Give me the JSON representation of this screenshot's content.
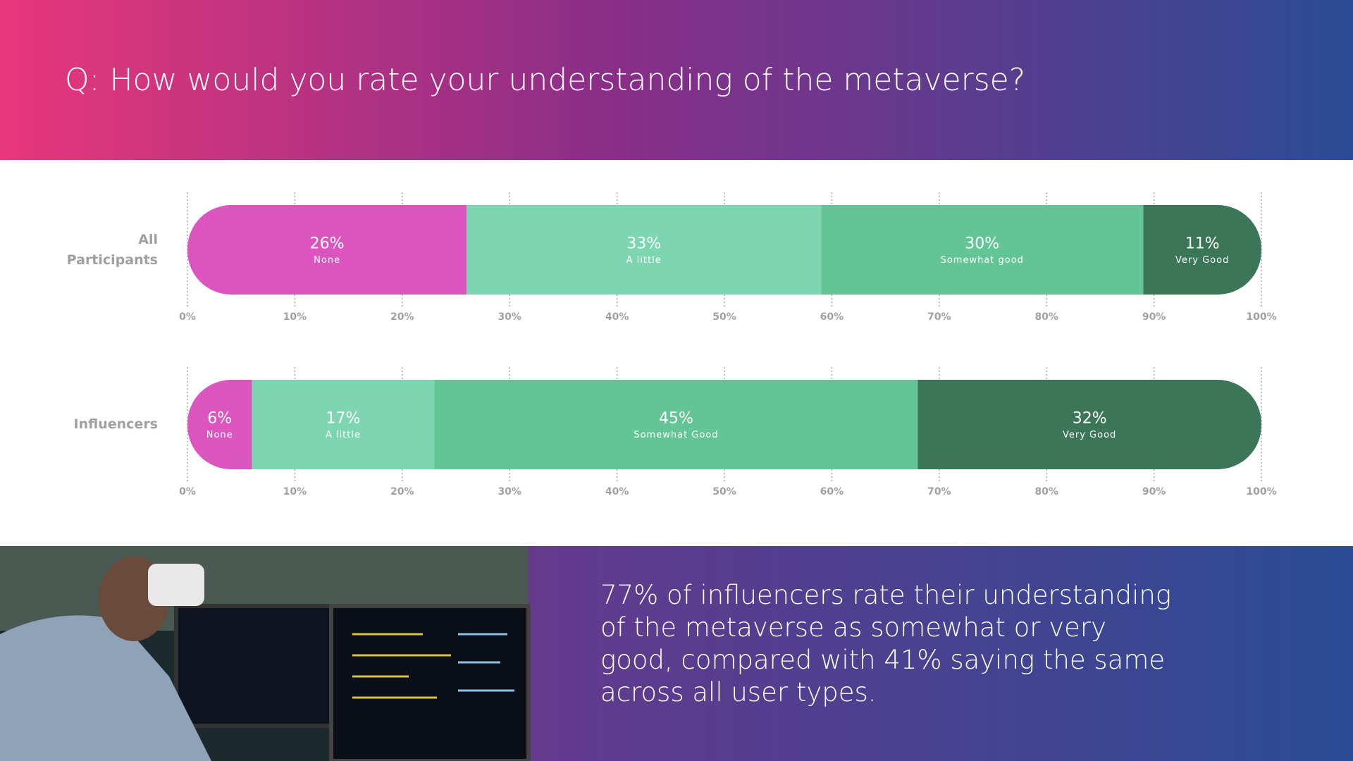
{
  "title": "Q: How would you rate your understanding of the metaverse?",
  "callout": "77% of influencers rate their understanding of the metaverse as somewhat or very good, compared with 41% saying the same across all user types.",
  "chart_data": [
    {
      "type": "stacked_bar",
      "label": "All Participants",
      "categories": [
        "None",
        "A little",
        "Somewhat good",
        "Very Good"
      ],
      "values": [
        26,
        33,
        30,
        11
      ],
      "value_labels": [
        "26%",
        "33%",
        "30%",
        "11%"
      ],
      "colors": [
        "#dc55be",
        "#7dd6b1",
        "#63c496",
        "#3c7658"
      ],
      "xlim": [
        0,
        100
      ],
      "xticks": [
        {
          "value": 0,
          "label": "0%"
        },
        {
          "value": 10,
          "label": "10%"
        },
        {
          "value": 20,
          "label": "20%"
        },
        {
          "value": 30,
          "label": "30%"
        },
        {
          "value": 40,
          "label": "40%"
        },
        {
          "value": 50,
          "label": "50%"
        },
        {
          "value": 60,
          "label": "60%"
        },
        {
          "value": 70,
          "label": "70%"
        },
        {
          "value": 80,
          "label": "80%"
        },
        {
          "value": 90,
          "label": "90%"
        },
        {
          "value": 100,
          "label": "100%"
        }
      ]
    },
    {
      "type": "stacked_bar",
      "label": "Influencers",
      "categories": [
        "None",
        "A little",
        "Somewhat Good",
        "Very Good"
      ],
      "values": [
        6,
        17,
        45,
        32
      ],
      "value_labels": [
        "6%",
        "17%",
        "45%",
        "32%"
      ],
      "colors": [
        "#dc55be",
        "#7dd6b1",
        "#63c496",
        "#3c7658"
      ],
      "xlim": [
        0,
        100
      ],
      "xticks": [
        {
          "value": 0,
          "label": "0%"
        },
        {
          "value": 10,
          "label": "10%"
        },
        {
          "value": 20,
          "label": "20%"
        },
        {
          "value": 30,
          "label": "30%"
        },
        {
          "value": 40,
          "label": "40%"
        },
        {
          "value": 50,
          "label": "50%"
        },
        {
          "value": 60,
          "label": "60%"
        },
        {
          "value": 70,
          "label": "70%"
        },
        {
          "value": 80,
          "label": "80%"
        },
        {
          "value": 90,
          "label": "90%"
        },
        {
          "value": 100,
          "label": "100%"
        }
      ]
    }
  ]
}
